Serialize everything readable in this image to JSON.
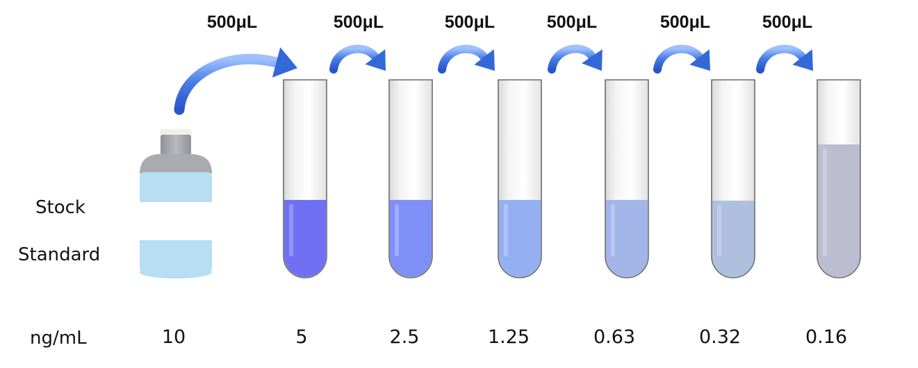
{
  "stock_label": [
    "Stock",
    "Standard"
  ],
  "units_label": "ng/mL",
  "transfer_volume": "500μL",
  "concentrations": [
    "10",
    "5",
    "2.5",
    "1.25",
    "0.63",
    "0.32",
    "0.16"
  ],
  "tubes": [
    {
      "conc": "5",
      "color": "#6f70f4"
    },
    {
      "conc": "2.5",
      "color": "#7f8ff8"
    },
    {
      "conc": "1.25",
      "color": "#94b0f3"
    },
    {
      "conc": "0.63",
      "color": "#a3b5e8"
    },
    {
      "conc": "0.32",
      "color": "#afbfde"
    },
    {
      "conc": "0.16",
      "color": "#bcbdd1"
    }
  ],
  "colors": {
    "arrow": "#3f73e0",
    "bottle_body": "#b7def2",
    "bottle_cap": "#a4a6ab",
    "bottle_shoulder": "#aeb0b4"
  }
}
